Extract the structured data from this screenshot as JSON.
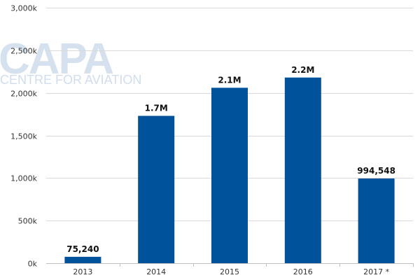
{
  "watermark": {
    "logo": "CAPA",
    "tagline": "CENTRE FOR AVIATION"
  },
  "chart_data": {
    "type": "bar",
    "categories": [
      "2013",
      "2014",
      "2015",
      "2016",
      "2017 *"
    ],
    "values": [
      75240,
      1730000,
      2060000,
      2180000,
      994548
    ],
    "data_labels": [
      "75,240",
      "1.7M",
      "2.1M",
      "2.2M",
      "994,548"
    ],
    "yticks": [
      0,
      500000,
      1000000,
      1500000,
      2000000,
      2500000,
      3000000
    ],
    "ytick_labels": [
      "0k",
      "500k",
      "1,000k",
      "1,500k",
      "2,000k",
      "2,500k",
      "3,000k"
    ],
    "ylim": [
      0,
      3000000
    ],
    "grid": true,
    "colors": {
      "bar": "#00539b",
      "grid": "#d9d9d9",
      "axis": "#bfbfbf"
    },
    "title": "",
    "xlabel": "",
    "ylabel": ""
  }
}
